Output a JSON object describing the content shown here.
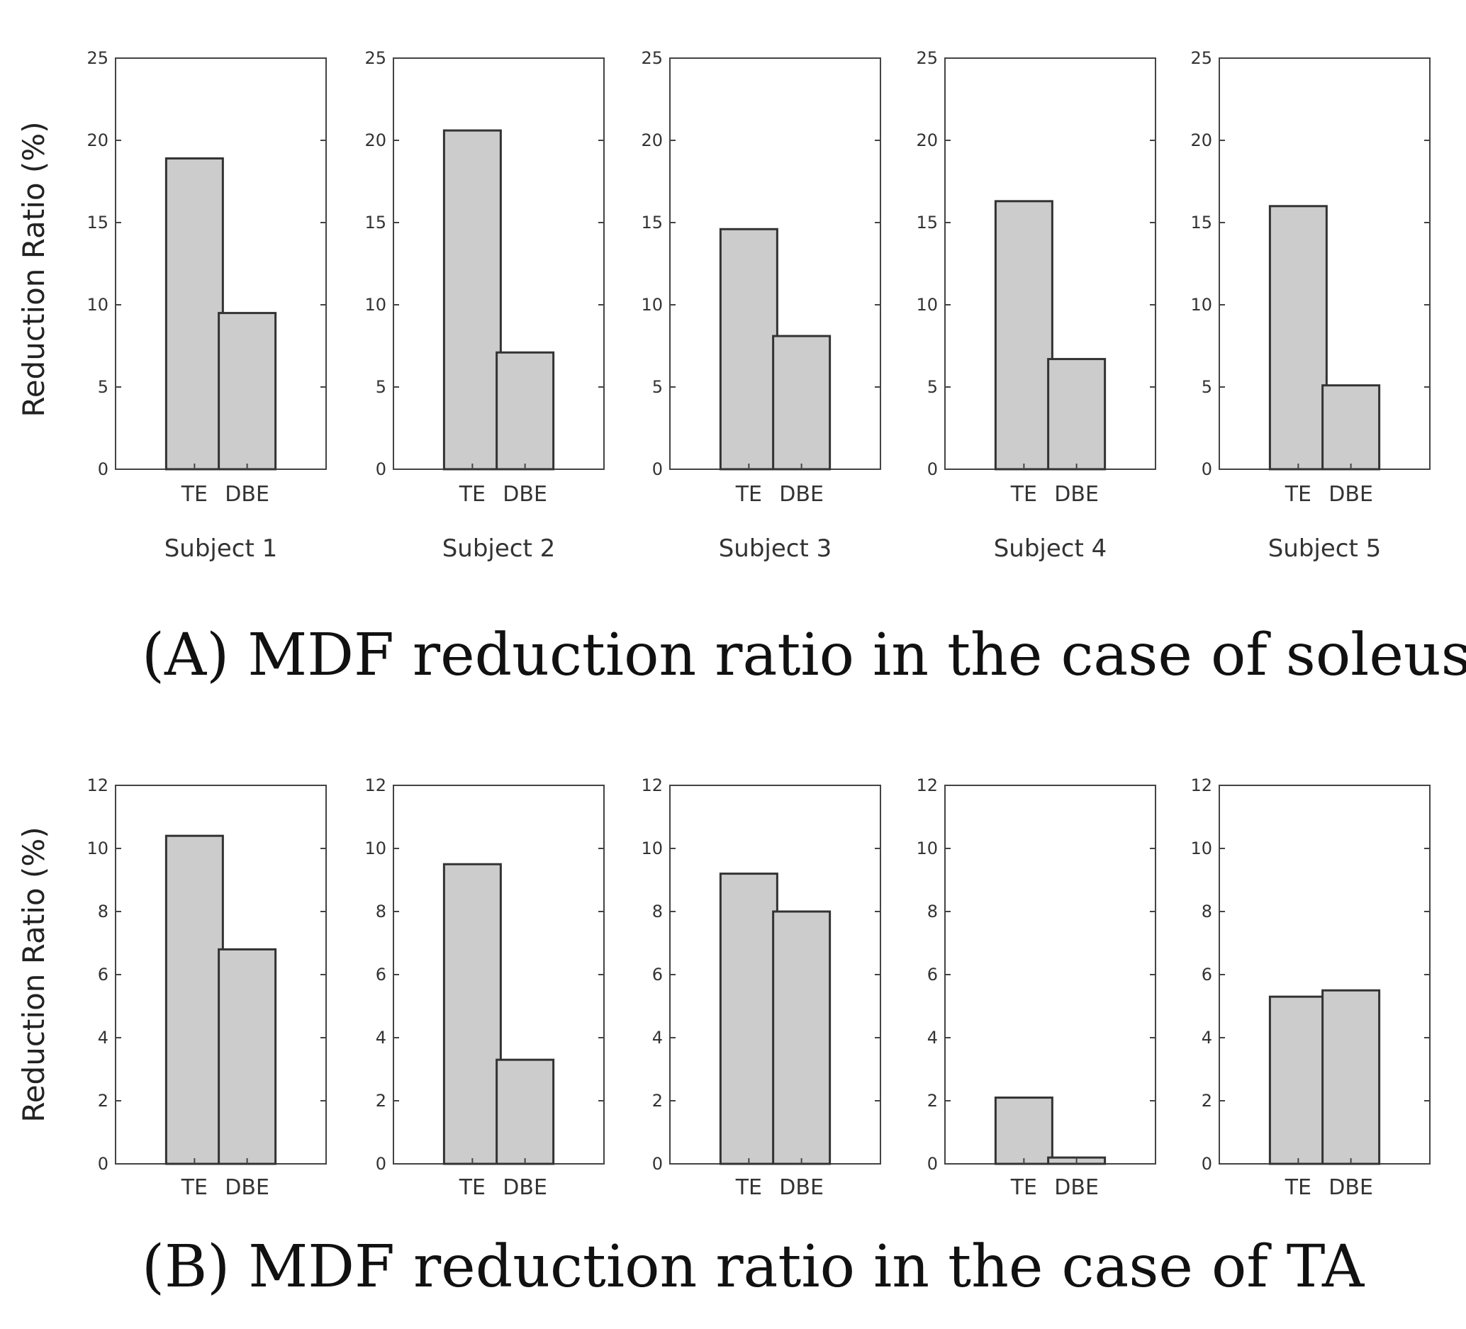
{
  "figure": {
    "caption_a": "(A) MDF reduction ratio in the case of soleus",
    "caption_b": "(B) MDF reduction ratio in the case of TA"
  },
  "colors": {
    "bar_fill": "#cccccc",
    "bar_stroke": "#333333",
    "axis": "#444444"
  },
  "chart_data": [
    {
      "panel": "A",
      "type": "bar",
      "ylabel": "Reduction Ratio (%)",
      "ylim": [
        0,
        25
      ],
      "yticks": [
        0,
        5,
        10,
        15,
        20,
        25
      ],
      "categories": [
        "TE",
        "DBE"
      ],
      "subjects": [
        {
          "name": "Subject 1",
          "values": [
            18.9,
            9.5
          ]
        },
        {
          "name": "Subject 2",
          "values": [
            20.6,
            7.1
          ]
        },
        {
          "name": "Subject 3",
          "values": [
            14.6,
            8.1
          ]
        },
        {
          "name": "Subject 4",
          "values": [
            16.3,
            6.7
          ]
        },
        {
          "name": "Subject 5",
          "values": [
            16.0,
            5.1
          ]
        }
      ]
    },
    {
      "panel": "B",
      "type": "bar",
      "ylabel": "Reduction Ratio (%)",
      "ylim": [
        0,
        12
      ],
      "yticks": [
        0,
        2,
        4,
        6,
        8,
        10,
        12
      ],
      "categories": [
        "TE",
        "DBE"
      ],
      "subjects": [
        {
          "name": "",
          "values": [
            10.4,
            6.8
          ]
        },
        {
          "name": "",
          "values": [
            9.5,
            3.3
          ]
        },
        {
          "name": "",
          "values": [
            9.2,
            8.0
          ]
        },
        {
          "name": "",
          "values": [
            2.1,
            0.2
          ]
        },
        {
          "name": "",
          "values": [
            5.3,
            5.5
          ]
        }
      ]
    }
  ]
}
